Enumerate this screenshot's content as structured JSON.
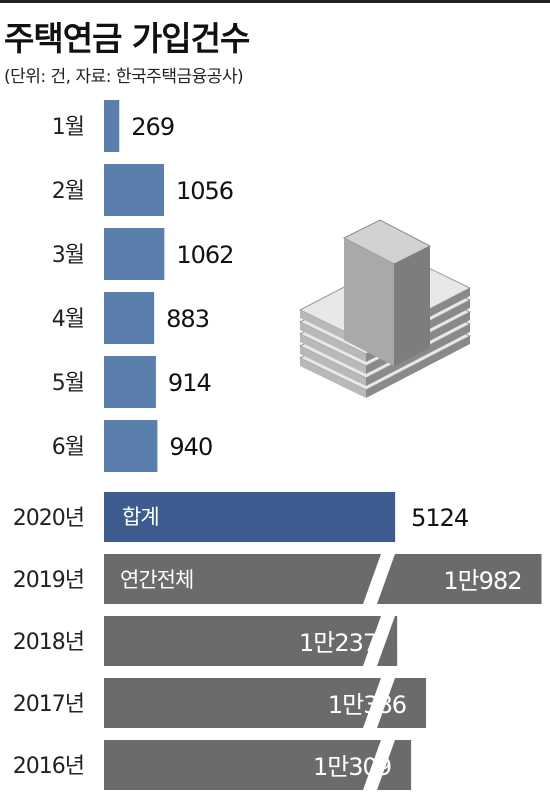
{
  "title": "주택연금 가입건수",
  "subtitle": "(단위: 건, 자료: 한국주택금융공사)",
  "colors": {
    "monthly_bar": "#5b7fad",
    "total_bar": "#3d5b8e",
    "annual_bar": "#6b6b6b",
    "icon_light": "#e8e8e8",
    "icon_mid": "#b9b9b9",
    "icon_dark": "#8a8a8a"
  },
  "icon": "stack-of-money-icon",
  "chart_data": [
    {
      "type": "bar",
      "orientation": "horizontal",
      "categories": [
        "1월",
        "2월",
        "3월",
        "4월",
        "5월",
        "6월"
      ],
      "values": [
        269,
        1056,
        1062,
        883,
        914,
        940
      ],
      "value_labels": [
        "269",
        "1056",
        "1062",
        "883",
        "914",
        "940"
      ]
    },
    {
      "type": "bar",
      "orientation": "horizontal",
      "categories": [
        "2020년"
      ],
      "values": [
        5124
      ],
      "value_labels": [
        "5124"
      ],
      "bar_label": "합계"
    },
    {
      "type": "bar",
      "orientation": "horizontal",
      "broken_axis": true,
      "categories": [
        "2019년",
        "2018년",
        "2017년",
        "2016년"
      ],
      "values": [
        10982,
        10237,
        10386,
        10309
      ],
      "value_labels": [
        "1만982",
        "1만237",
        "1만386",
        "1만309"
      ],
      "bar_label": "연간전체"
    }
  ]
}
